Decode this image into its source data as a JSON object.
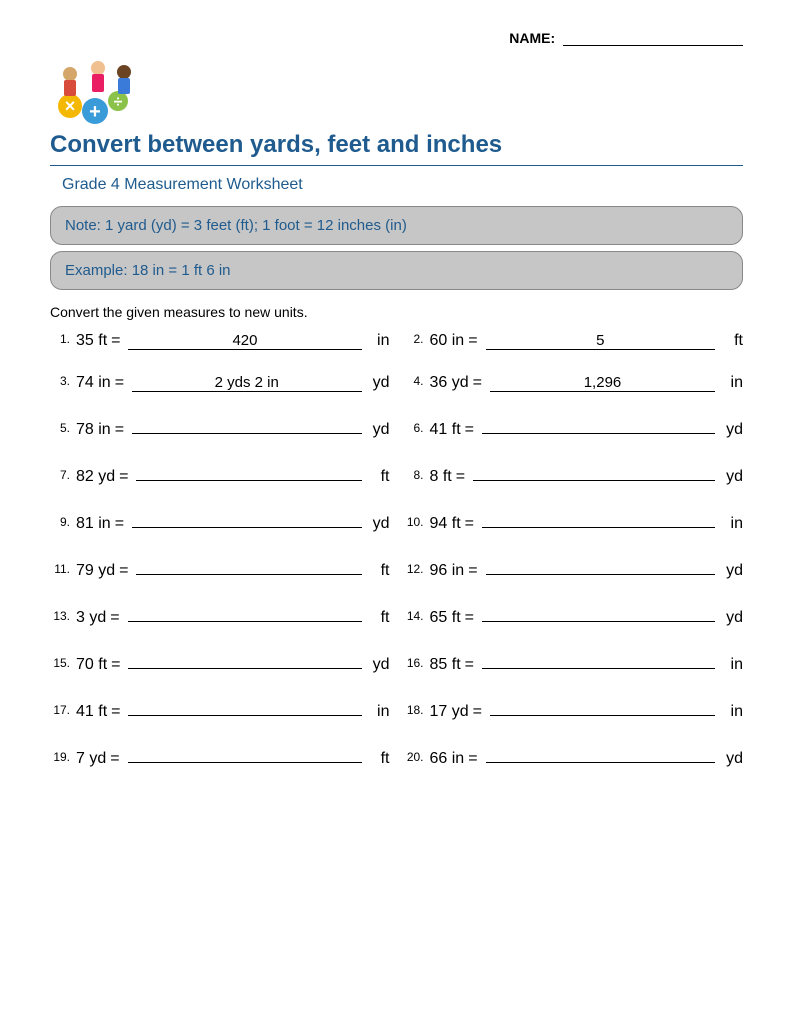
{
  "header": {
    "name_label": "NAME:"
  },
  "title": "Convert between yards, feet and inches",
  "subtitle": "Grade 4 Measurement Worksheet",
  "note": "Note:  1 yard (yd) = 3 feet (ft);  1 foot = 12 inches (in)",
  "example": "Example:    18 in = 1 ft 6 in",
  "instructions": "Convert the given measures to new units.",
  "problems": [
    {
      "n": "1.",
      "given": "35 ft",
      "answer": "420",
      "unit": "in"
    },
    {
      "n": "2.",
      "given": "60 in",
      "answer": "5",
      "unit": "ft"
    },
    {
      "n": "3.",
      "given": "74 in",
      "answer": "2 yds 2 in",
      "unit": "yd"
    },
    {
      "n": "4.",
      "given": "36 yd",
      "answer": "1,296",
      "unit": "in"
    },
    {
      "n": "5.",
      "given": "78 in",
      "answer": "",
      "unit": "yd"
    },
    {
      "n": "6.",
      "given": "41 ft",
      "answer": "",
      "unit": "yd"
    },
    {
      "n": "7.",
      "given": "82 yd",
      "answer": "",
      "unit": "ft"
    },
    {
      "n": "8.",
      "given": "8 ft",
      "answer": "",
      "unit": "yd"
    },
    {
      "n": "9.",
      "given": "81 in",
      "answer": "",
      "unit": "yd"
    },
    {
      "n": "10.",
      "given": "94 ft",
      "answer": "",
      "unit": "in"
    },
    {
      "n": "11.",
      "given": "79 yd",
      "answer": "",
      "unit": "ft"
    },
    {
      "n": "12.",
      "given": "96 in",
      "answer": "",
      "unit": "yd"
    },
    {
      "n": "13.",
      "given": "3 yd",
      "answer": "",
      "unit": "ft"
    },
    {
      "n": "14.",
      "given": "65 ft",
      "answer": "",
      "unit": "yd"
    },
    {
      "n": "15.",
      "given": "70 ft",
      "answer": "",
      "unit": "yd"
    },
    {
      "n": "16.",
      "given": "85 ft",
      "answer": "",
      "unit": "in"
    },
    {
      "n": "17.",
      "given": "41 ft",
      "answer": "",
      "unit": "in"
    },
    {
      "n": "18.",
      "given": "17 yd",
      "answer": "",
      "unit": "in"
    },
    {
      "n": "19.",
      "given": "7 yd",
      "answer": "",
      "unit": "ft"
    },
    {
      "n": "20.",
      "given": "66 in",
      "answer": "",
      "unit": "yd"
    }
  ],
  "colors": {
    "title": "#1f5b8e",
    "box_bg": "#c6c6c6",
    "box_border": "#888888",
    "text": "#000000",
    "background": "#ffffff"
  }
}
